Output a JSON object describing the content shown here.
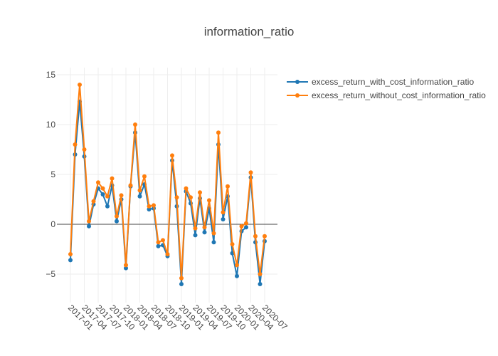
{
  "chart_data": {
    "type": "line",
    "title": "information_ratio",
    "xlabel": "",
    "ylabel": "",
    "x": [
      "2017-01",
      "2017-02",
      "2017-03",
      "2017-04",
      "2017-05",
      "2017-06",
      "2017-07",
      "2017-08",
      "2017-09",
      "2017-10",
      "2017-11",
      "2017-12",
      "2018-01",
      "2018-02",
      "2018-03",
      "2018-04",
      "2018-05",
      "2018-06",
      "2018-07",
      "2018-08",
      "2018-09",
      "2018-10",
      "2018-11",
      "2018-12",
      "2019-01",
      "2019-02",
      "2019-03",
      "2019-04",
      "2019-05",
      "2019-06",
      "2019-07",
      "2019-08",
      "2019-09",
      "2019-10",
      "2019-11",
      "2019-12",
      "2020-01",
      "2020-02",
      "2020-03",
      "2020-04",
      "2020-05",
      "2020-06",
      "2020-07"
    ],
    "x_tick_labels": [
      "2017-01",
      "2017-04",
      "2017-07",
      "2017-10",
      "2018-01",
      "2018-04",
      "2018-07",
      "2018-10",
      "2019-01",
      "2019-04",
      "2019-07",
      "2019-10",
      "2020-01",
      "2020-04",
      "2020-07"
    ],
    "y_tick_labels": [
      "15",
      "10",
      "5",
      "0",
      "−5"
    ],
    "y_ticks": [
      15,
      10,
      5,
      0,
      -5
    ],
    "ylim": [
      -7.5,
      15.5
    ],
    "grid": true,
    "legend_position": "top-right",
    "series": [
      {
        "name": "excess_return_with_cost_information_ratio",
        "color": "#1f77b4",
        "values": [
          -3.6,
          7.0,
          12.3,
          6.8,
          -0.2,
          2.0,
          3.6,
          3.0,
          1.8,
          3.9,
          0.3,
          2.5,
          -4.4,
          3.8,
          9.2,
          2.8,
          4.0,
          1.5,
          1.6,
          -2.2,
          -2.1,
          -3.2,
          6.4,
          1.8,
          -6.0,
          3.3,
          2.1,
          -1.1,
          2.6,
          -0.8,
          1.6,
          -1.8,
          8.0,
          0.5,
          2.8,
          -2.9,
          -5.2,
          -0.7,
          -0.3,
          4.7,
          -1.8,
          -6.0,
          -1.7
        ]
      },
      {
        "name": "excess_return_without_cost_information_ratio",
        "color": "#ff7f0e",
        "values": [
          -3.0,
          8.0,
          14.0,
          7.5,
          0.3,
          2.3,
          4.2,
          3.6,
          2.8,
          4.6,
          0.8,
          2.9,
          -4.1,
          3.9,
          10.0,
          3.4,
          4.8,
          1.8,
          1.9,
          -1.8,
          -1.6,
          -3.0,
          6.9,
          2.7,
          -5.4,
          3.6,
          2.7,
          -0.4,
          3.2,
          -0.3,
          2.4,
          -0.9,
          9.2,
          1.2,
          3.8,
          -2.0,
          -4.1,
          -0.2,
          0.1,
          5.2,
          -1.2,
          -5.0,
          -1.2
        ]
      }
    ]
  }
}
